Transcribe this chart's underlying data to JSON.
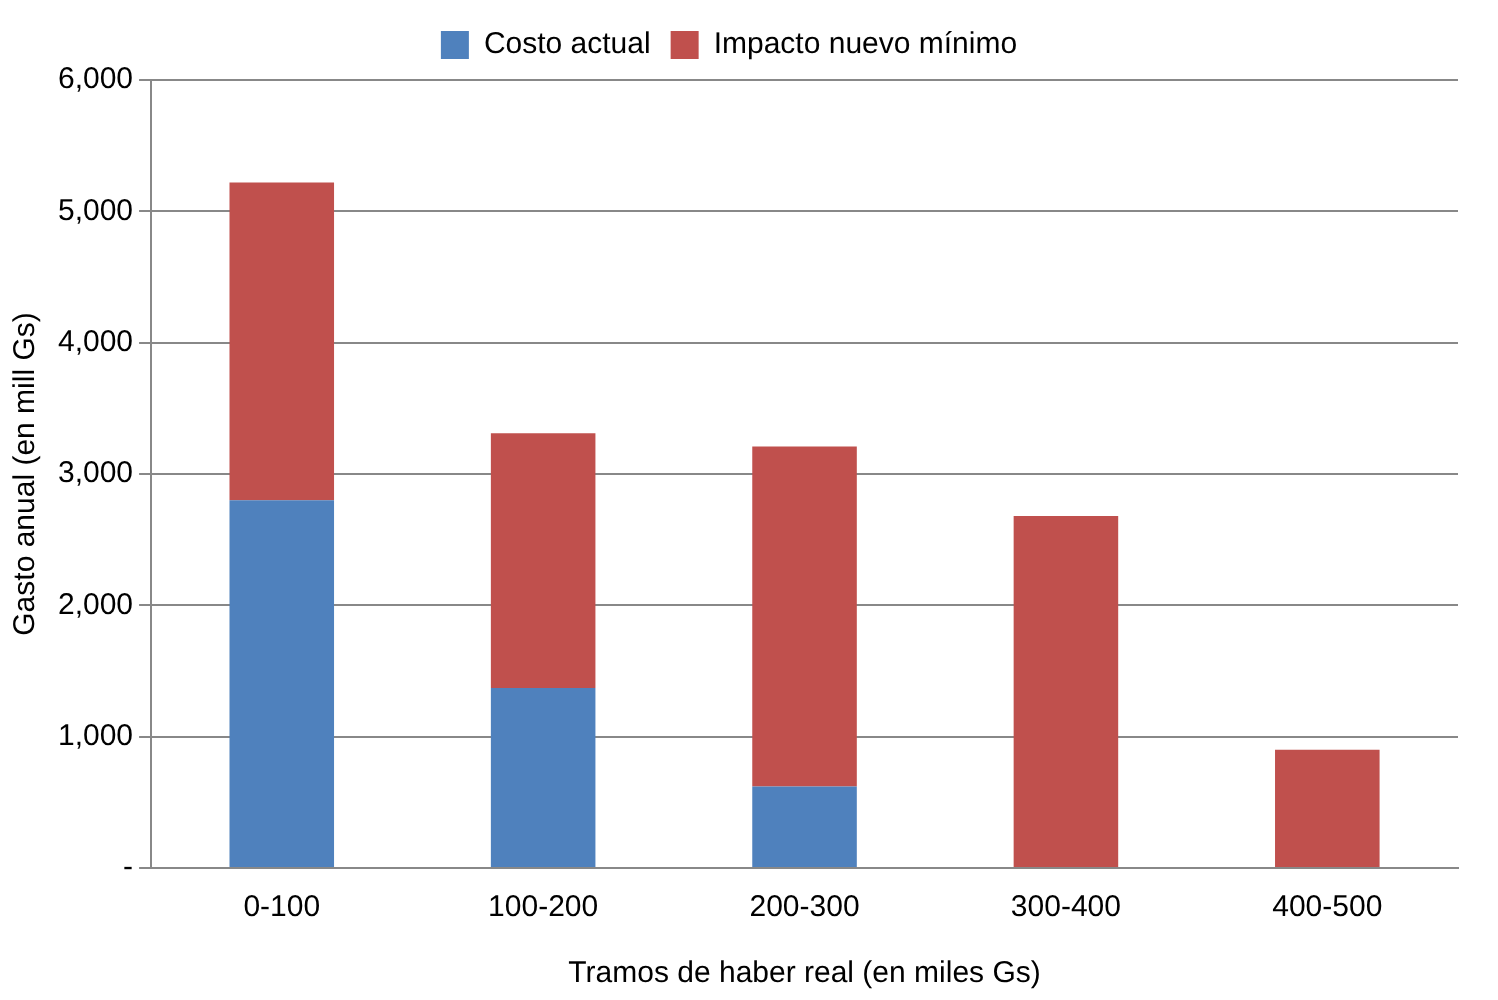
{
  "chart_data": {
    "type": "bar",
    "stacked": true,
    "xlabel": "Tramos de haber real (en miles Gs)",
    "ylabel": "Gasto anual (en mill Gs)",
    "categories": [
      "0-100",
      "100-200",
      "200-300",
      "300-400",
      "400-500"
    ],
    "series": [
      {
        "name": "Costo actual",
        "color": "#4f81bd",
        "values": [
          2800,
          1370,
          620,
          0,
          0
        ]
      },
      {
        "name": "Impacto nuevo mínimo",
        "color": "#c0504d",
        "values": [
          2420,
          1940,
          2590,
          2680,
          900
        ]
      }
    ],
    "ylim": [
      0,
      6000
    ],
    "yticks": [
      {
        "value": 0,
        "label": "-"
      },
      {
        "value": 1000,
        "label": "1,000"
      },
      {
        "value": 2000,
        "label": "2,000"
      },
      {
        "value": 3000,
        "label": "3,000"
      },
      {
        "value": 4000,
        "label": "4,000"
      },
      {
        "value": 5000,
        "label": "5,000"
      },
      {
        "value": 6000,
        "label": "6,000"
      }
    ],
    "grid": "y",
    "legend": "top"
  }
}
